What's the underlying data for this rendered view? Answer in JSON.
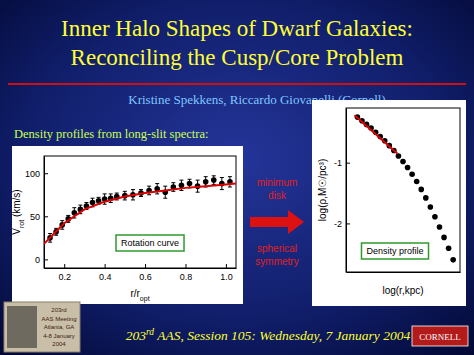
{
  "slide": {
    "title": [
      "Inner Halo Shapes of Dwarf Galaxies:",
      "Reconciling the Cusp/Core Problem"
    ],
    "authors": "Kristine Spekkens, Riccardo Giovanelli (Cornell)",
    "intro": "Density profiles from long-slit spectra:",
    "arrow_top": [
      "minimum",
      "disk"
    ],
    "arrow_bottom": [
      "spherical",
      "symmetry"
    ],
    "footer": [
      "203",
      "rd",
      " AAS, Session 105: Wednesday, 7 January 2004"
    ],
    "badge": [
      "203rd",
      "AAS Meeting",
      "Atlanta, GA",
      "4-8 January",
      "2004"
    ],
    "logo": "CORNELL"
  },
  "chart_data": [
    {
      "type": "scatter",
      "annotation": "Rotation curve",
      "xlabel": [
        "r/r",
        "opt"
      ],
      "ylabel": [
        "V",
        "rot",
        " (km/s)"
      ],
      "xlim": [
        0.1,
        1.05
      ],
      "ylim": [
        -10,
        120
      ],
      "xticks": [
        0.2,
        0.4,
        0.6,
        0.8,
        {
          "value": 1,
          "label": "1.0"
        }
      ],
      "yticks": [
        0,
        50,
        100
      ],
      "series": [
        {
          "type": "scatter",
          "color": "#000000",
          "marker": "circle",
          "x": [
            0.13,
            0.16,
            0.19,
            0.22,
            0.25,
            0.28,
            0.31,
            0.34,
            0.37,
            0.4,
            0.43,
            0.46,
            0.5,
            0.54,
            0.58,
            0.62,
            0.66,
            0.7,
            0.74,
            0.78,
            0.82,
            0.86,
            0.9,
            0.94,
            0.98,
            1.02
          ],
          "values": [
            25,
            32,
            40,
            47,
            54,
            58,
            62,
            66,
            68,
            70,
            71,
            73,
            74,
            75,
            77,
            80,
            82,
            78,
            84,
            86,
            88,
            85,
            90,
            92,
            88,
            90
          ],
          "errors": [
            5,
            4,
            5,
            4,
            6,
            5,
            4,
            5,
            4,
            6,
            5,
            4,
            5,
            6,
            4,
            5,
            6,
            7,
            5,
            6,
            5,
            7,
            6,
            5,
            7,
            6
          ]
        },
        {
          "type": "line",
          "color": "#dd0000",
          "line_style": "solid",
          "x": [
            0.1,
            0.15,
            0.2,
            0.3,
            0.4,
            0.5,
            0.6,
            0.7,
            0.8,
            0.9,
            1.0,
            1.05
          ],
          "values": [
            18,
            30,
            42,
            58,
            67,
            73,
            77,
            80,
            83,
            85,
            87,
            88
          ]
        }
      ]
    },
    {
      "type": "scatter",
      "annotation": "Density profile",
      "xlabel": "log(r,kpc)",
      "ylabel": "log(ρ,M☉/pc³)",
      "xlim": [
        -1.5,
        0.5
      ],
      "ylim": [
        -2.8,
        -0.1
      ],
      "yticks": [
        -1,
        -2
      ],
      "tick_labels": "y",
      "series": [
        {
          "type": "scatter",
          "color": "#000000",
          "marker": "circle",
          "x": [
            -1.3,
            -1.22,
            -1.14,
            -1.06,
            -0.98,
            -0.9,
            -0.82,
            -0.74,
            -0.66,
            -0.58,
            -0.5,
            -0.42,
            -0.34,
            -0.26,
            -0.18,
            -0.1,
            -0.02,
            0.06,
            0.14,
            0.22,
            0.3,
            0.38
          ],
          "values": [
            -0.25,
            -0.31,
            -0.37,
            -0.43,
            -0.5,
            -0.57,
            -0.64,
            -0.72,
            -0.8,
            -0.89,
            -0.98,
            -1.08,
            -1.19,
            -1.31,
            -1.44,
            -1.58,
            -1.73,
            -1.89,
            -2.06,
            -2.23,
            -2.41,
            -2.6
          ]
        },
        {
          "type": "line",
          "color": "#dd0000",
          "line_style": "solid",
          "x": [
            -1.35,
            -0.6
          ],
          "values": [
            -0.22,
            -0.85
          ]
        }
      ]
    }
  ]
}
